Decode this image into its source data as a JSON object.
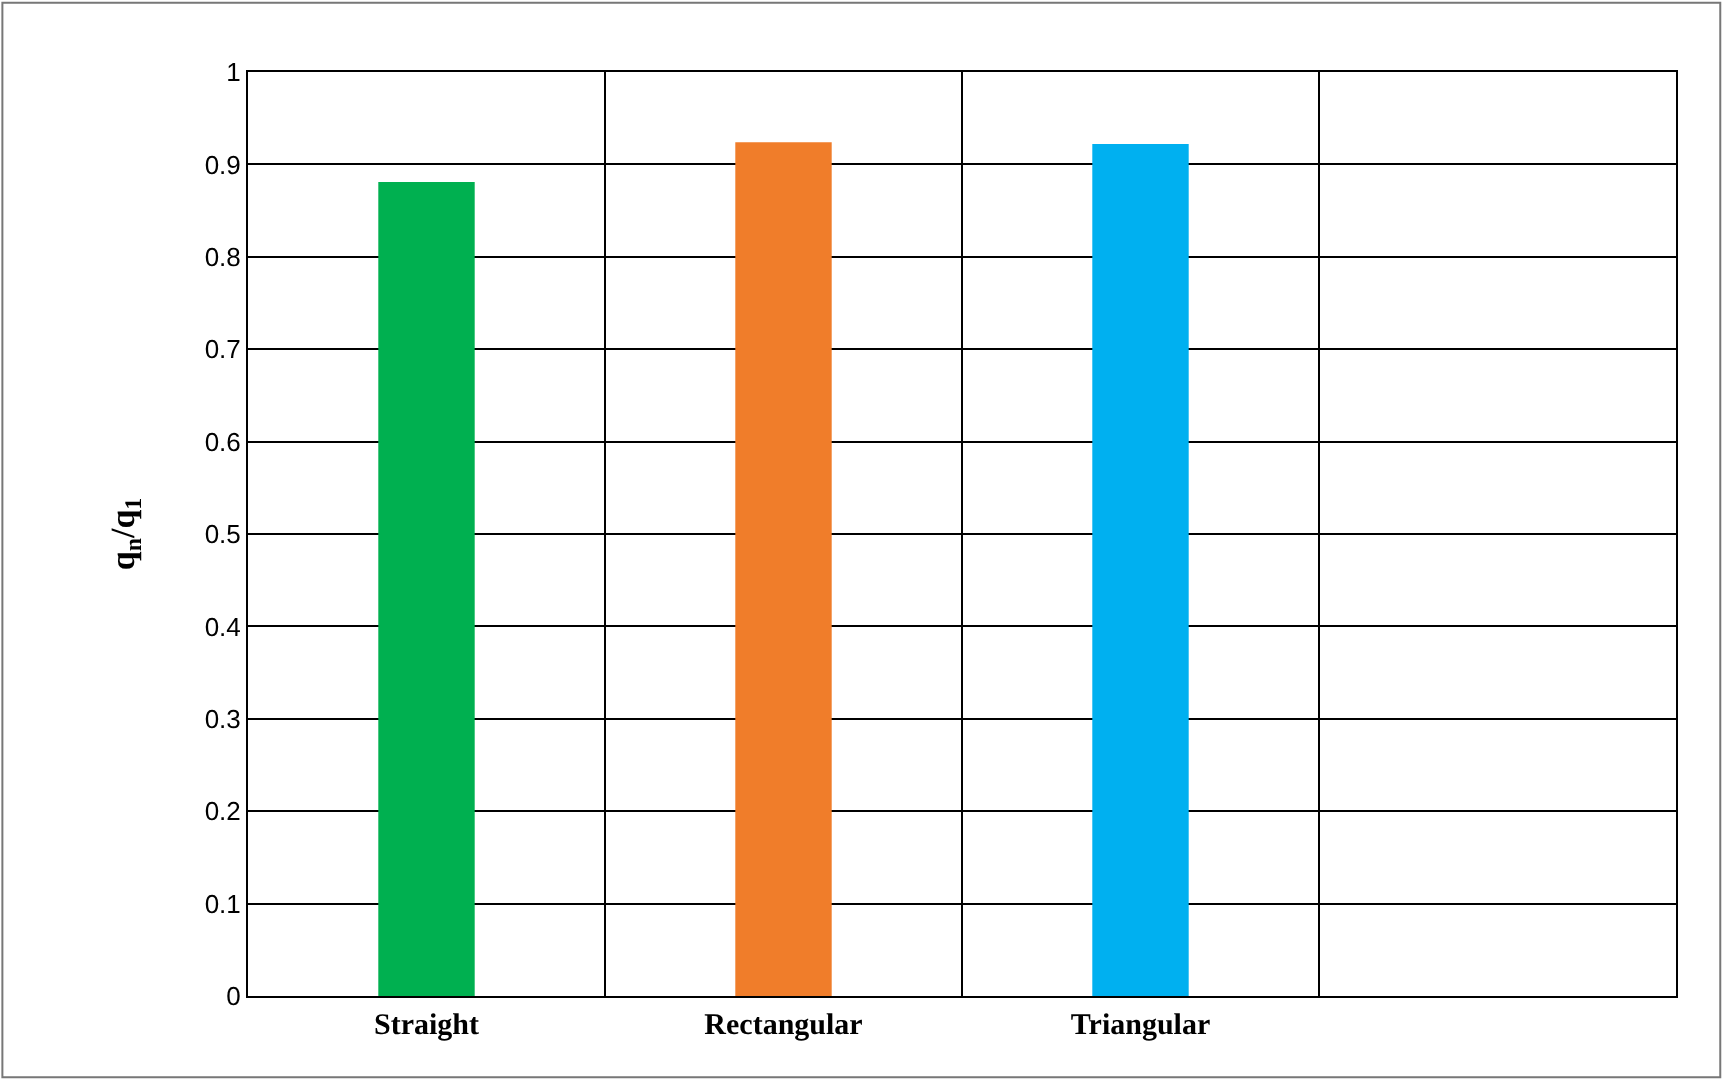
{
  "chart_data": {
    "type": "bar",
    "ylabel": "q$_{n}$/q$_{1}$",
    "categories": [
      "Straight",
      "Rectangular",
      "Triangular",
      null
    ],
    "values": [
      0.881,
      0.924,
      0.922,
      null
    ],
    "colors": [
      "#00b050",
      "#f07d2a",
      "#00b0f0",
      "#000000"
    ],
    "ylim": [
      0,
      1
    ],
    "yticks": [
      0,
      0.1,
      0.2,
      0.3,
      0.4,
      0.5,
      0.6,
      0.7,
      0.8,
      0.9,
      1
    ],
    "grid": true,
    "legend": false
  }
}
